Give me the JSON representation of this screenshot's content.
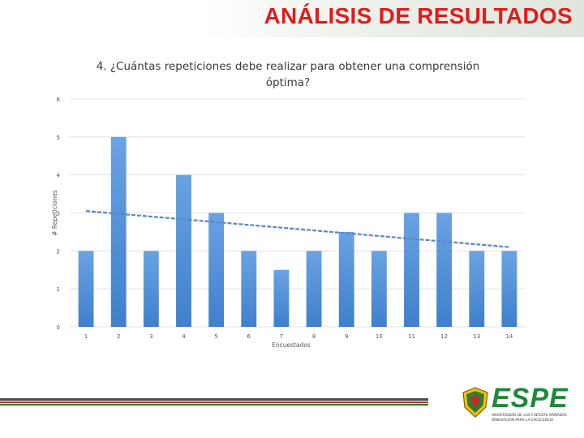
{
  "slide": {
    "title": "ANÁLISIS DE RESULTADOS"
  },
  "logo": {
    "name": "ESPE",
    "line1": "UNIVERSIDAD DE LAS FUERZAS ARMADAS",
    "line2": "INNOVACIÓN PARA LA EXCELENCIA"
  },
  "colors": {
    "title_red": "#e01b1b",
    "bar_blue": "#4f8fd8",
    "trend": "#5b86c0",
    "logo_green": "#1f8a3a",
    "stripe_red": "#c62828",
    "stripe_green": "#2e7d32"
  },
  "chart_data": {
    "type": "bar",
    "title": "4. ¿Cuántas repeticiones debe realizar para obtener una comprensión óptima?",
    "xlabel": "Encuestados",
    "ylabel": "# Repeticiones",
    "categories": [
      "1",
      "2",
      "3",
      "4",
      "5",
      "6",
      "7",
      "8",
      "9",
      "10",
      "11",
      "12",
      "13",
      "14"
    ],
    "values": [
      2,
      5,
      2,
      4,
      3,
      2,
      1.5,
      2,
      2.5,
      2,
      3,
      3,
      2,
      2
    ],
    "ylim": [
      0,
      6
    ],
    "yticks": [
      "0",
      "1",
      "2",
      "3",
      "4",
      "5",
      "6"
    ],
    "grid": true,
    "trendline": {
      "type": "linear",
      "start": 3.05,
      "end": 2.1
    }
  }
}
